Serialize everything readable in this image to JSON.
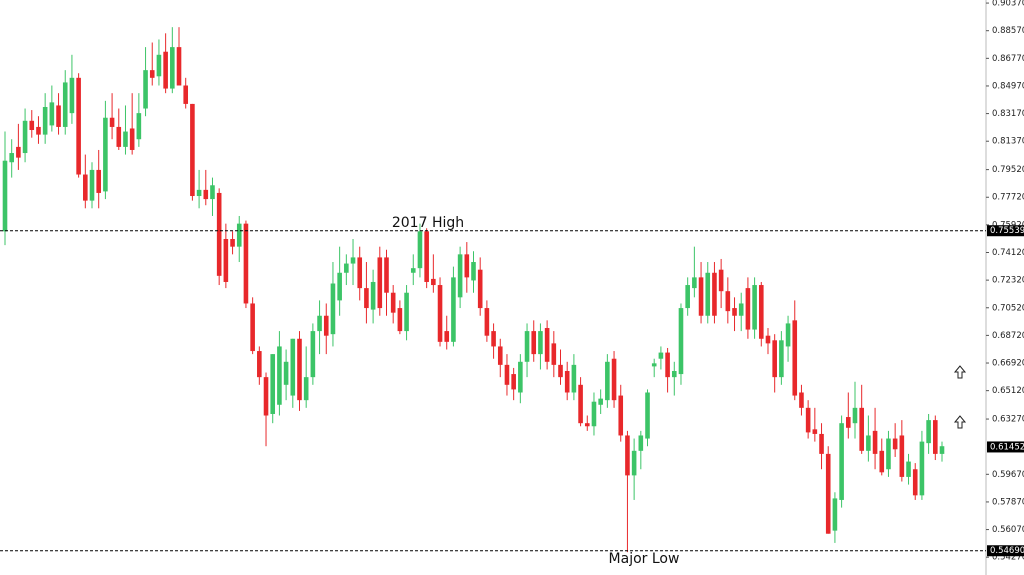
{
  "chart_data": {
    "type": "candlestick",
    "up_color": "#3cc467",
    "down_color": "#e8282b",
    "ylim": [
      0.5311,
      0.9057
    ],
    "yticks": [
      {
        "value": 0.9037,
        "label": "0.90370"
      },
      {
        "value": 0.8857,
        "label": "0.88570"
      },
      {
        "value": 0.8677,
        "label": "0.86770"
      },
      {
        "value": 0.8497,
        "label": "0.84970"
      },
      {
        "value": 0.8317,
        "label": "0.83170"
      },
      {
        "value": 0.8137,
        "label": "0.81370"
      },
      {
        "value": 0.7952,
        "label": "0.79520"
      },
      {
        "value": 0.7772,
        "label": "0.77720"
      },
      {
        "value": 0.7592,
        "label": "0.75920"
      },
      {
        "value": 0.7412,
        "label": "0.74120"
      },
      {
        "value": 0.7232,
        "label": "0.72320"
      },
      {
        "value": 0.7052,
        "label": "0.70520"
      },
      {
        "value": 0.6872,
        "label": "0.68720"
      },
      {
        "value": 0.6692,
        "label": "0.66920"
      },
      {
        "value": 0.6512,
        "label": "0.65120"
      },
      {
        "value": 0.6327,
        "label": "0.63270"
      },
      {
        "value": 0.5967,
        "label": "0.59670"
      },
      {
        "value": 0.5787,
        "label": "0.57870"
      },
      {
        "value": 0.5607,
        "label": "0.56070"
      },
      {
        "value": 0.5427,
        "label": "0.54270"
      }
    ],
    "hlines": [
      {
        "value": 0.75539,
        "label": "0.75539"
      },
      {
        "value": 0.5469,
        "label": "0.54690"
      }
    ],
    "current_price": {
      "value": 0.61452,
      "label": "0.61452"
    },
    "annotations": [
      "2017 High",
      "Major Low"
    ],
    "ohlc": [
      [
        0.755,
        0.82,
        0.746,
        0.801
      ],
      [
        0.8,
        0.815,
        0.79,
        0.806
      ],
      [
        0.81,
        0.825,
        0.795,
        0.803
      ],
      [
        0.806,
        0.835,
        0.8,
        0.827
      ],
      [
        0.827,
        0.834,
        0.816,
        0.821
      ],
      [
        0.823,
        0.83,
        0.812,
        0.818
      ],
      [
        0.818,
        0.845,
        0.812,
        0.836
      ],
      [
        0.824,
        0.85,
        0.82,
        0.839
      ],
      [
        0.837,
        0.845,
        0.818,
        0.823
      ],
      [
        0.823,
        0.86,
        0.818,
        0.852
      ],
      [
        0.832,
        0.87,
        0.825,
        0.855
      ],
      [
        0.855,
        0.858,
        0.79,
        0.792
      ],
      [
        0.792,
        0.805,
        0.77,
        0.775
      ],
      [
        0.775,
        0.8,
        0.77,
        0.795
      ],
      [
        0.795,
        0.808,
        0.77,
        0.78
      ],
      [
        0.781,
        0.84,
        0.776,
        0.829
      ],
      [
        0.829,
        0.845,
        0.815,
        0.823
      ],
      [
        0.823,
        0.835,
        0.808,
        0.81
      ],
      [
        0.81,
        0.837,
        0.805,
        0.82
      ],
      [
        0.822,
        0.845,
        0.805,
        0.808
      ],
      [
        0.815,
        0.845,
        0.81,
        0.832
      ],
      [
        0.835,
        0.875,
        0.83,
        0.86
      ],
      [
        0.86,
        0.878,
        0.85,
        0.855
      ],
      [
        0.856,
        0.88,
        0.85,
        0.87
      ],
      [
        0.872,
        0.884,
        0.845,
        0.848
      ],
      [
        0.848,
        0.888,
        0.845,
        0.875
      ],
      [
        0.875,
        0.888,
        0.85,
        0.85
      ],
      [
        0.85,
        0.855,
        0.835,
        0.838
      ],
      [
        0.838,
        0.838,
        0.775,
        0.778
      ],
      [
        0.778,
        0.795,
        0.77,
        0.782
      ],
      [
        0.782,
        0.795,
        0.772,
        0.776
      ],
      [
        0.776,
        0.79,
        0.765,
        0.785
      ],
      [
        0.78,
        0.783,
        0.72,
        0.726
      ],
      [
        0.75,
        0.76,
        0.718,
        0.722
      ],
      [
        0.75,
        0.755,
        0.74,
        0.745
      ],
      [
        0.745,
        0.765,
        0.735,
        0.76
      ],
      [
        0.76,
        0.762,
        0.705,
        0.708
      ],
      [
        0.708,
        0.712,
        0.675,
        0.677
      ],
      [
        0.677,
        0.68,
        0.655,
        0.66
      ],
      [
        0.66,
        0.663,
        0.615,
        0.635
      ],
      [
        0.636,
        0.675,
        0.63,
        0.675
      ],
      [
        0.642,
        0.69,
        0.635,
        0.68
      ],
      [
        0.655,
        0.678,
        0.645,
        0.67
      ],
      [
        0.648,
        0.685,
        0.64,
        0.685
      ],
      [
        0.685,
        0.69,
        0.638,
        0.645
      ],
      [
        0.645,
        0.68,
        0.64,
        0.66
      ],
      [
        0.66,
        0.695,
        0.655,
        0.69
      ],
      [
        0.69,
        0.71,
        0.675,
        0.7
      ],
      [
        0.7,
        0.708,
        0.675,
        0.687
      ],
      [
        0.688,
        0.735,
        0.68,
        0.721
      ],
      [
        0.71,
        0.745,
        0.7,
        0.728
      ],
      [
        0.728,
        0.74,
        0.72,
        0.734
      ],
      [
        0.734,
        0.75,
        0.72,
        0.738
      ],
      [
        0.738,
        0.745,
        0.71,
        0.718
      ],
      [
        0.718,
        0.735,
        0.695,
        0.705
      ],
      [
        0.704,
        0.73,
        0.695,
        0.722
      ],
      [
        0.738,
        0.745,
        0.7,
        0.705
      ],
      [
        0.738,
        0.743,
        0.7,
        0.715
      ],
      [
        0.715,
        0.72,
        0.695,
        0.702
      ],
      [
        0.705,
        0.71,
        0.688,
        0.69
      ],
      [
        0.69,
        0.72,
        0.684,
        0.715
      ],
      [
        0.728,
        0.74,
        0.72,
        0.731
      ],
      [
        0.731,
        0.76,
        0.725,
        0.755
      ],
      [
        0.755,
        0.757,
        0.718,
        0.722
      ],
      [
        0.724,
        0.74,
        0.715,
        0.72
      ],
      [
        0.72,
        0.725,
        0.68,
        0.683
      ],
      [
        0.69,
        0.7,
        0.678,
        0.683
      ],
      [
        0.683,
        0.732,
        0.68,
        0.725
      ],
      [
        0.712,
        0.745,
        0.705,
        0.74
      ],
      [
        0.74,
        0.748,
        0.715,
        0.725
      ],
      [
        0.723,
        0.742,
        0.715,
        0.735
      ],
      [
        0.73,
        0.738,
        0.7,
        0.705
      ],
      [
        0.705,
        0.71,
        0.683,
        0.687
      ],
      [
        0.69,
        0.695,
        0.672,
        0.68
      ],
      [
        0.68,
        0.685,
        0.66,
        0.668
      ],
      [
        0.668,
        0.675,
        0.648,
        0.655
      ],
      [
        0.662,
        0.666,
        0.645,
        0.652
      ],
      [
        0.65,
        0.675,
        0.643,
        0.67
      ],
      [
        0.67,
        0.695,
        0.66,
        0.69
      ],
      [
        0.69,
        0.697,
        0.67,
        0.675
      ],
      [
        0.675,
        0.695,
        0.665,
        0.69
      ],
      [
        0.692,
        0.697,
        0.665,
        0.67
      ],
      [
        0.682,
        0.69,
        0.66,
        0.668
      ],
      [
        0.668,
        0.678,
        0.655,
        0.66
      ],
      [
        0.664,
        0.67,
        0.645,
        0.65
      ],
      [
        0.65,
        0.675,
        0.645,
        0.668
      ],
      [
        0.655,
        0.66,
        0.628,
        0.63
      ],
      [
        0.63,
        0.635,
        0.625,
        0.628
      ],
      [
        0.628,
        0.65,
        0.622,
        0.644
      ],
      [
        0.642,
        0.652,
        0.636,
        0.646
      ],
      [
        0.645,
        0.675,
        0.64,
        0.67
      ],
      [
        0.672,
        0.677,
        0.64,
        0.645
      ],
      [
        0.648,
        0.655,
        0.618,
        0.622
      ],
      [
        0.622,
        0.625,
        0.546,
        0.596
      ],
      [
        0.596,
        0.62,
        0.58,
        0.612
      ],
      [
        0.612,
        0.625,
        0.6,
        0.622
      ],
      [
        0.62,
        0.652,
        0.615,
        0.65
      ],
      [
        0.667,
        0.672,
        0.66,
        0.669
      ],
      [
        0.672,
        0.68,
        0.665,
        0.676
      ],
      [
        0.676,
        0.679,
        0.65,
        0.66
      ],
      [
        0.66,
        0.67,
        0.648,
        0.664
      ],
      [
        0.662,
        0.708,
        0.655,
        0.705
      ],
      [
        0.705,
        0.725,
        0.7,
        0.72
      ],
      [
        0.718,
        0.745,
        0.712,
        0.725
      ],
      [
        0.725,
        0.735,
        0.695,
        0.7
      ],
      [
        0.7,
        0.735,
        0.695,
        0.728
      ],
      [
        0.728,
        0.735,
        0.695,
        0.7
      ],
      [
        0.73,
        0.737,
        0.705,
        0.716
      ],
      [
        0.716,
        0.725,
        0.695,
        0.703
      ],
      [
        0.705,
        0.712,
        0.69,
        0.7
      ],
      [
        0.7,
        0.715,
        0.69,
        0.708
      ],
      [
        0.718,
        0.725,
        0.685,
        0.691
      ],
      [
        0.691,
        0.725,
        0.685,
        0.72
      ],
      [
        0.72,
        0.722,
        0.68,
        0.685
      ],
      [
        0.687,
        0.692,
        0.675,
        0.682
      ],
      [
        0.684,
        0.688,
        0.65,
        0.66
      ],
      [
        0.66,
        0.69,
        0.655,
        0.684
      ],
      [
        0.68,
        0.7,
        0.67,
        0.695
      ],
      [
        0.697,
        0.71,
        0.645,
        0.648
      ],
      [
        0.65,
        0.655,
        0.635,
        0.64
      ],
      [
        0.64,
        0.645,
        0.62,
        0.624
      ],
      [
        0.626,
        0.64,
        0.618,
        0.623
      ],
      [
        0.623,
        0.63,
        0.6,
        0.61
      ],
      [
        0.61,
        0.615,
        0.558,
        0.558
      ],
      [
        0.56,
        0.585,
        0.552,
        0.581
      ],
      [
        0.58,
        0.635,
        0.575,
        0.63
      ],
      [
        0.634,
        0.65,
        0.62,
        0.627
      ],
      [
        0.63,
        0.657,
        0.62,
        0.64
      ],
      [
        0.64,
        0.655,
        0.61,
        0.612
      ],
      [
        0.612,
        0.635,
        0.605,
        0.622
      ],
      [
        0.625,
        0.64,
        0.6,
        0.61
      ],
      [
        0.612,
        0.62,
        0.596,
        0.598
      ],
      [
        0.6,
        0.625,
        0.595,
        0.62
      ],
      [
        0.62,
        0.63,
        0.608,
        0.613
      ],
      [
        0.622,
        0.632,
        0.592,
        0.595
      ],
      [
        0.595,
        0.61,
        0.59,
        0.605
      ],
      [
        0.6,
        0.604,
        0.58,
        0.583
      ],
      [
        0.583,
        0.625,
        0.58,
        0.618
      ],
      [
        0.617,
        0.636,
        0.61,
        0.632
      ],
      [
        0.632,
        0.635,
        0.606,
        0.61
      ],
      [
        0.61,
        0.618,
        0.605,
        0.615
      ]
    ]
  }
}
